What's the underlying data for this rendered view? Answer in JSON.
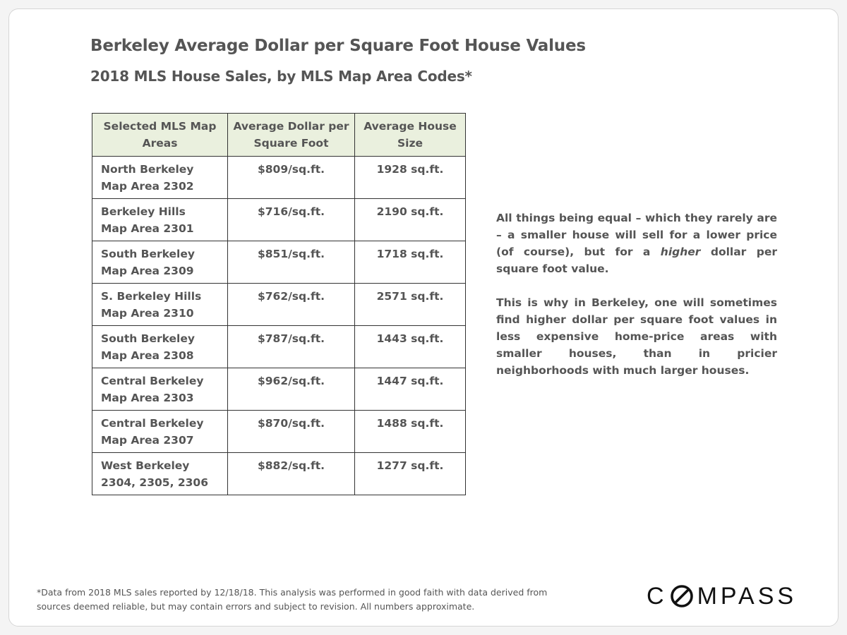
{
  "header": {
    "title": "Berkeley Average Dollar per Square Foot House Values",
    "subtitle": "2018 MLS House Sales, by MLS Map Area Codes*"
  },
  "table": {
    "columns": [
      "Selected MLS Map Areas",
      "Average Dollar per Square Foot",
      "Average House Size"
    ],
    "rows": [
      {
        "area": "North Berkeley",
        "code": "Map Area 2302",
        "price": "$809/sq.ft.",
        "size": "1928 sq.ft."
      },
      {
        "area": "Berkeley Hills",
        "code": "Map Area 2301",
        "price": "$716/sq.ft.",
        "size": "2190 sq.ft."
      },
      {
        "area": "South Berkeley",
        "code": "Map Area 2309",
        "price": "$851/sq.ft.",
        "size": "1718 sq.ft."
      },
      {
        "area": "S. Berkeley Hills",
        "code": "Map Area 2310",
        "price": "$762/sq.ft.",
        "size": "2571 sq.ft."
      },
      {
        "area": "South Berkeley",
        "code": "Map Area 2308",
        "price": "$787/sq.ft.",
        "size": "1443 sq.ft."
      },
      {
        "area": "Central Berkeley",
        "code": "Map Area 2303",
        "price": "$962/sq.ft.",
        "size": "1447 sq.ft."
      },
      {
        "area": "Central Berkeley",
        "code": "Map Area 2307",
        "price": "$870/sq.ft.",
        "size": "1488 sq.ft."
      },
      {
        "area": "West Berkeley",
        "code": "2304, 2305, 2306",
        "price": "$882/sq.ft.",
        "size": "1277 sq.ft."
      }
    ]
  },
  "sidebar": {
    "p1_before": "All things being equal – which they rarely are – a smaller house will sell for a lower price (of course), but for a ",
    "p1_emphasis": "higher",
    "p1_after": " dollar per square foot value.",
    "p2": "This is why in Berkeley, one will sometimes find higher dollar per square foot values in less expensive home-price areas with smaller houses, than in pricier neighborhoods with much larger houses."
  },
  "footer": {
    "note_line1": "*Data from 2018 MLS sales reported by 12/18/18. This analysis was performed in good faith with data derived from",
    "note_line2": "sources deemed reliable, but may contain errors and subject to revision. All numbers approximate.",
    "logo_text": "COMPASS",
    "logo_first": "C",
    "logo_rest": "MPASS"
  },
  "colors": {
    "header_fill": "#eaf0de",
    "text": "#555555",
    "border": "#333333"
  }
}
